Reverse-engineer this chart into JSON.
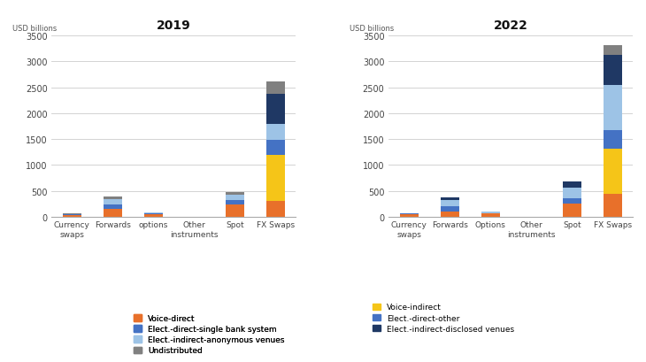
{
  "title_2019": "2019",
  "title_2022": "2022",
  "ylabel": "USD billions",
  "categories_2019": [
    "Currency\nswaps",
    "Forwards",
    "options",
    "Other\ninstruments",
    "Spot",
    "FX Swaps"
  ],
  "categories_2022": [
    "Currency\nswaps",
    "Forwards",
    "Options",
    "Other\ninstruments",
    "Spot",
    "FX Swaps"
  ],
  "ylim": [
    0,
    3500
  ],
  "yticks": [
    0,
    500,
    1000,
    1500,
    2000,
    2500,
    3000,
    3500
  ],
  "data_2019": {
    "voice_direct": [
      40,
      160,
      55,
      0,
      245,
      300
    ],
    "voice_indirect": [
      0,
      0,
      0,
      0,
      0,
      900
    ],
    "elect_direct_sbs": [
      5,
      80,
      10,
      0,
      75,
      290
    ],
    "elect_indir_anon": [
      5,
      100,
      15,
      0,
      110,
      310
    ],
    "elect_indir_disc": [
      0,
      0,
      0,
      0,
      0,
      580
    ],
    "undistributed": [
      10,
      60,
      10,
      0,
      55,
      230
    ]
  },
  "data_2022": {
    "voice_direct": [
      55,
      100,
      65,
      0,
      260,
      450
    ],
    "voice_indirect": [
      0,
      0,
      0,
      0,
      0,
      870
    ],
    "elect_direct_other": [
      5,
      100,
      10,
      0,
      95,
      350
    ],
    "elect_indir_anon": [
      0,
      130,
      20,
      0,
      210,
      870
    ],
    "elect_indir_disc": [
      5,
      40,
      5,
      0,
      120,
      580
    ],
    "undistributed": [
      0,
      0,
      0,
      0,
      0,
      200
    ]
  },
  "colors": {
    "voice_direct": "#E8702A",
    "voice_indirect": "#F5C518",
    "elect_direct_sbs": "#4472C4",
    "elect_direct_other": "#4472C4",
    "elect_indir_anon": "#9DC3E6",
    "elect_indir_disc": "#1F3864",
    "undistributed": "#808080"
  },
  "legend_left": [
    [
      "voice_direct",
      "Voice-direct"
    ],
    [
      "elect_direct_sbs",
      "Elect.-direct-single bank system"
    ],
    [
      "elect_indir_anon",
      "Elect.-indirect-anonymous venues"
    ],
    [
      "undistributed",
      "Undistributed"
    ]
  ],
  "legend_right": [
    [
      "voice_indirect",
      "Voice-indirect"
    ],
    [
      "elect_direct_other",
      "Elect.-direct-other"
    ],
    [
      "elect_indir_disc",
      "Elect.-indirect-disclosed venues"
    ]
  ]
}
